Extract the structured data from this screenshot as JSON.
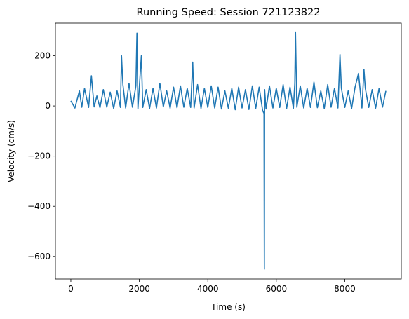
{
  "chart_data": {
    "type": "line",
    "title": "Running Speed: Session 721123822",
    "xlabel": "Time (s)",
    "ylabel": "Velocity (cm/s)",
    "xlim": [
      -450,
      9650
    ],
    "ylim": [
      -690,
      330
    ],
    "xticks": [
      0,
      2000,
      4000,
      6000,
      8000
    ],
    "yticks": [
      -600,
      -400,
      -200,
      0,
      200
    ],
    "grid": false,
    "series": [
      {
        "color": "#1f77b4",
        "x": [
          0,
          120,
          250,
          320,
          400,
          520,
          600,
          680,
          760,
          850,
          950,
          1050,
          1150,
          1250,
          1350,
          1450,
          1480,
          1520,
          1600,
          1700,
          1800,
          1900,
          1930,
          1960,
          2000,
          2060,
          2100,
          2200,
          2300,
          2400,
          2500,
          2600,
          2700,
          2800,
          2900,
          3000,
          3100,
          3200,
          3300,
          3400,
          3500,
          3560,
          3600,
          3700,
          3800,
          3900,
          4000,
          4100,
          4200,
          4300,
          4400,
          4500,
          4600,
          4700,
          4800,
          4900,
          5000,
          5100,
          5200,
          5300,
          5400,
          5500,
          5600,
          5640,
          5650,
          5660,
          5700,
          5800,
          5900,
          6000,
          6100,
          6200,
          6300,
          6400,
          6500,
          6540,
          6560,
          6600,
          6700,
          6800,
          6900,
          7000,
          7100,
          7200,
          7300,
          7400,
          7500,
          7600,
          7700,
          7800,
          7860,
          7900,
          8000,
          8100,
          8200,
          8300,
          8400,
          8500,
          8560,
          8600,
          8700,
          8800,
          8900,
          9000,
          9100,
          9200
        ],
        "y": [
          20,
          -8,
          60,
          -5,
          70,
          -6,
          120,
          -4,
          40,
          -7,
          65,
          -5,
          55,
          -10,
          60,
          -6,
          200,
          85,
          -8,
          90,
          -5,
          80,
          290,
          -12,
          75,
          200,
          -6,
          65,
          -10,
          70,
          -8,
          90,
          -4,
          60,
          -9,
          75,
          -7,
          80,
          -5,
          70,
          -6,
          175,
          -8,
          85,
          -10,
          70,
          -6,
          80,
          -8,
          75,
          -12,
          60,
          -9,
          70,
          -15,
          75,
          -8,
          65,
          -14,
          80,
          -10,
          75,
          -18,
          -30,
          -650,
          65,
          -12,
          80,
          -8,
          70,
          -6,
          85,
          -10,
          75,
          -9,
          90,
          295,
          -5,
          80,
          -8,
          70,
          -6,
          95,
          -7,
          60,
          -10,
          85,
          -5,
          70,
          -8,
          205,
          70,
          -6,
          60,
          -10,
          75,
          130,
          -8,
          145,
          70,
          -6,
          65,
          -9,
          70,
          -5,
          60
        ]
      }
    ]
  }
}
